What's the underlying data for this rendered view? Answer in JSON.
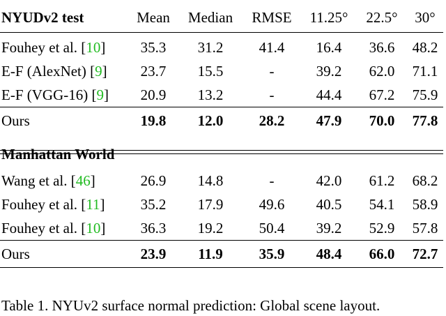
{
  "table": {
    "sections": [
      {
        "title": "NYUDv2 test",
        "columns": [
          "Mean",
          "Median",
          "RMSE",
          "11.25°",
          "22.5°",
          "30°"
        ],
        "rows": [
          {
            "method": "Fouhey et al. [",
            "cite": "10",
            "close": "]",
            "values": [
              "35.3",
              "31.2",
              "41.4",
              "16.4",
              "36.6",
              "48.2"
            ]
          },
          {
            "method": "E-F (AlexNet) [",
            "cite": "9",
            "close": "]",
            "values": [
              "23.7",
              "15.5",
              "-",
              "39.2",
              "62.0",
              "71.1"
            ]
          },
          {
            "method": "E-F (VGG-16) [",
            "cite": "9",
            "close": "]",
            "values": [
              "20.9",
              "13.2",
              "-",
              "44.4",
              "67.2",
              "75.9"
            ]
          }
        ],
        "ours": {
          "method": "Ours",
          "values": [
            "19.8",
            "12.0",
            "28.2",
            "47.9",
            "70.0",
            "77.8"
          ]
        }
      },
      {
        "title": "Manhattan World",
        "rows": [
          {
            "method": "Wang et al. [",
            "cite": "46",
            "close": "]",
            "values": [
              "26.9",
              "14.8",
              "-",
              "42.0",
              "61.2",
              "68.2"
            ]
          },
          {
            "method": "Fouhey et al. [",
            "cite": "11",
            "close": "]",
            "values": [
              "35.2",
              "17.9",
              "49.6",
              "40.5",
              "54.1",
              "58.9"
            ]
          },
          {
            "method": "Fouhey et al. [",
            "cite": "10",
            "close": "]",
            "values": [
              "36.3",
              "19.2",
              "50.4",
              "39.2",
              "52.9",
              "57.8"
            ]
          }
        ],
        "ours": {
          "method": "Ours",
          "values": [
            "23.9",
            "11.9",
            "35.9",
            "48.4",
            "66.0",
            "72.7"
          ]
        }
      }
    ]
  },
  "caption": "Table 1. NYUv2 surface normal prediction: Global scene layout."
}
